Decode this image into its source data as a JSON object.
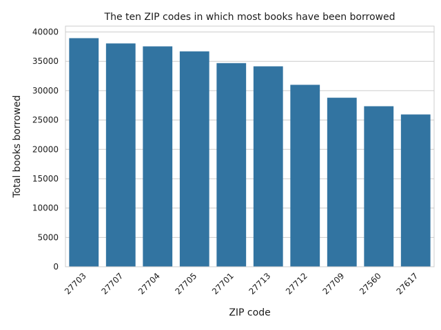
{
  "chart_data": {
    "type": "bar",
    "title": "The ten ZIP codes in which most books have been borrowed",
    "xlabel": "ZIP code",
    "ylabel": "Total books borrowed",
    "categories": [
      "27703",
      "27707",
      "27704",
      "27705",
      "27701",
      "27713",
      "27712",
      "27709",
      "27560",
      "27617"
    ],
    "values": [
      38950,
      38050,
      37550,
      36700,
      34700,
      34150,
      31000,
      28800,
      27350,
      25950
    ],
    "ylim": [
      0,
      41000
    ],
    "yticks": [
      0,
      5000,
      10000,
      15000,
      20000,
      25000,
      30000,
      35000,
      40000
    ],
    "grid": true,
    "bar_color": "#3274a1",
    "grid_color": "#cccccc"
  }
}
